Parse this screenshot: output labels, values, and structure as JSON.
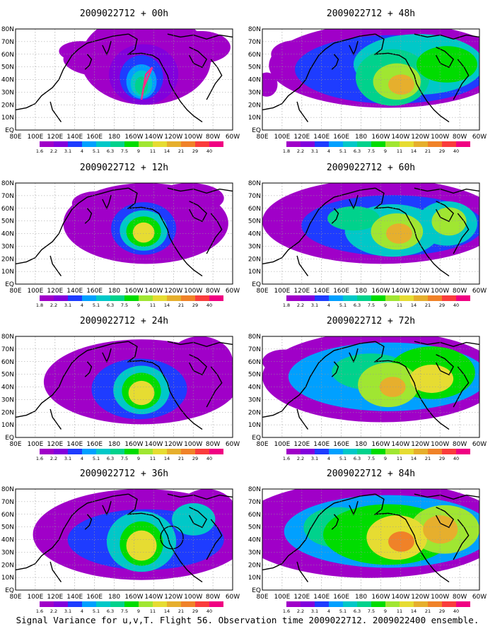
{
  "figure": {
    "caption": "Signal Variance for u,v,T. Flight 56. Observation time 2009022712. 2009022400 ensemble."
  },
  "colors": {
    "white": "#ffffff",
    "coast": "#000000",
    "track": "#ff2a8a"
  },
  "chart_data": [
    {
      "type": "heatmap",
      "title": "2009022712 + 00h",
      "x_ticks": [
        "80E",
        "100E",
        "120E",
        "140E",
        "160E",
        "180",
        "160W",
        "140W",
        "120W",
        "100W",
        "80W",
        "60W"
      ],
      "y_ticks": [
        "EQ",
        "10N",
        "20N",
        "30N",
        "40N",
        "50N",
        "60N",
        "70N",
        "80N"
      ],
      "grid": true,
      "colorbar": {
        "levels": [
          "1.6",
          "2.2",
          "3.1",
          "4",
          "5.1",
          "6.3",
          "7.5",
          "9",
          "11",
          "14",
          "21",
          "29",
          "40"
        ],
        "colors": [
          "#a000c8",
          "#8200dc",
          "#1e3cff",
          "#00a0ff",
          "#00c8c8",
          "#00d28c",
          "#00dc00",
          "#a0e632",
          "#e6dc32",
          "#e6af2d",
          "#f08228",
          "#fa3c3c",
          "#f00082"
        ]
      }
    },
    {
      "type": "heatmap",
      "title": "2009022712 + 48h",
      "x_ticks": [
        "80E",
        "100E",
        "120E",
        "140E",
        "160E",
        "180",
        "160W",
        "140W",
        "120W",
        "100W",
        "80W",
        "60W"
      ],
      "y_ticks": [
        "EQ",
        "10N",
        "20N",
        "30N",
        "40N",
        "50N",
        "60N",
        "70N",
        "80N"
      ],
      "grid": true,
      "colorbar": {
        "levels": [
          "1.8",
          "2.2",
          "3.1",
          "4",
          "5.1",
          "6.3",
          "7.5",
          "9",
          "11",
          "14",
          "21",
          "29",
          "40"
        ],
        "colors": [
          "#a000c8",
          "#8200dc",
          "#1e3cff",
          "#00a0ff",
          "#00c8c8",
          "#00d28c",
          "#00dc00",
          "#a0e632",
          "#e6dc32",
          "#e6af2d",
          "#f08228",
          "#fa3c3c",
          "#f00082"
        ]
      }
    },
    {
      "type": "heatmap",
      "title": "2009022712 + 12h",
      "x_ticks": [
        "80E",
        "100E",
        "120E",
        "140E",
        "160E",
        "180",
        "160W",
        "140W",
        "120W",
        "100W",
        "80W",
        "60W"
      ],
      "y_ticks": [
        "EQ",
        "10N",
        "20N",
        "30N",
        "40N",
        "50N",
        "60N",
        "70N",
        "80N"
      ],
      "grid": true,
      "colorbar": {
        "levels": [
          "1.8",
          "2.2",
          "3.1",
          "4",
          "5.1",
          "6.3",
          "7.5",
          "9",
          "11",
          "14",
          "21",
          "29",
          "40"
        ],
        "colors": [
          "#a000c8",
          "#8200dc",
          "#1e3cff",
          "#00a0ff",
          "#00c8c8",
          "#00d28c",
          "#00dc00",
          "#a0e632",
          "#e6dc32",
          "#e6af2d",
          "#f08228",
          "#fa3c3c",
          "#f00082"
        ]
      }
    },
    {
      "type": "heatmap",
      "title": "2009022712 + 60h",
      "x_ticks": [
        "80E",
        "100E",
        "120E",
        "140E",
        "160E",
        "180",
        "160W",
        "140W",
        "120W",
        "100W",
        "80W",
        "60W"
      ],
      "y_ticks": [
        "EQ",
        "10N",
        "20N",
        "30N",
        "40N",
        "50N",
        "60N",
        "70N",
        "80N"
      ],
      "grid": true,
      "colorbar": {
        "levels": [
          "1.8",
          "2.2",
          "3.1",
          "4",
          "5.1",
          "6.3",
          "7.5",
          "9",
          "11",
          "14",
          "21",
          "29",
          "40"
        ],
        "colors": [
          "#a000c8",
          "#8200dc",
          "#1e3cff",
          "#00a0ff",
          "#00c8c8",
          "#00d28c",
          "#00dc00",
          "#a0e632",
          "#e6dc32",
          "#e6af2d",
          "#f08228",
          "#fa3c3c",
          "#f00082"
        ]
      }
    },
    {
      "type": "heatmap",
      "title": "2009022712 + 24h",
      "x_ticks": [
        "80E",
        "100E",
        "120E",
        "140E",
        "160E",
        "180",
        "160W",
        "140W",
        "120W",
        "100W",
        "80W",
        "60W"
      ],
      "y_ticks": [
        "EQ",
        "10N",
        "20N",
        "30N",
        "40N",
        "50N",
        "60N",
        "70N",
        "80N"
      ],
      "grid": true,
      "colorbar": {
        "levels": [
          "1.6",
          "2.2",
          "3.1",
          "4",
          "5.1",
          "6.3",
          "7.5",
          "9",
          "11",
          "14",
          "21",
          "29",
          "40"
        ],
        "colors": [
          "#a000c8",
          "#8200dc",
          "#1e3cff",
          "#00a0ff",
          "#00c8c8",
          "#00d28c",
          "#00dc00",
          "#a0e632",
          "#e6dc32",
          "#e6af2d",
          "#f08228",
          "#fa3c3c",
          "#f00082"
        ]
      }
    },
    {
      "type": "heatmap",
      "title": "2009022712 + 72h",
      "x_ticks": [
        "80E",
        "100E",
        "120E",
        "140E",
        "160E",
        "180",
        "160W",
        "140W",
        "120W",
        "100W",
        "80W",
        "60W"
      ],
      "y_ticks": [
        "EQ",
        "10N",
        "20N",
        "30N",
        "40N",
        "50N",
        "60N",
        "70N",
        "80N"
      ],
      "grid": true,
      "colorbar": {
        "levels": [
          "1.6",
          "2.2",
          "3.1",
          "4",
          "5.1",
          "6.3",
          "7.5",
          "9",
          "11",
          "14",
          "21",
          "29",
          "40"
        ],
        "colors": [
          "#a000c8",
          "#8200dc",
          "#1e3cff",
          "#00a0ff",
          "#00c8c8",
          "#00d28c",
          "#00dc00",
          "#a0e632",
          "#e6dc32",
          "#e6af2d",
          "#f08228",
          "#fa3c3c",
          "#f00082"
        ]
      }
    },
    {
      "type": "heatmap",
      "title": "2009022712 + 36h",
      "x_ticks": [
        "80E",
        "100E",
        "120E",
        "140E",
        "160E",
        "180",
        "160W",
        "140W",
        "120W",
        "100W",
        "80W",
        "60W"
      ],
      "y_ticks": [
        "EQ",
        "10N",
        "20N",
        "30N",
        "40N",
        "50N",
        "60N",
        "70N",
        "80N"
      ],
      "grid": true,
      "colorbar": {
        "levels": [
          "1.6",
          "2.2",
          "3.1",
          "4",
          "5.1",
          "6.3",
          "7.5",
          "9",
          "11",
          "14",
          "21",
          "29",
          "40"
        ],
        "colors": [
          "#a000c8",
          "#8200dc",
          "#1e3cff",
          "#00a0ff",
          "#00c8c8",
          "#00d28c",
          "#00dc00",
          "#a0e632",
          "#e6dc32",
          "#e6af2d",
          "#f08228",
          "#fa3c3c",
          "#f00082"
        ]
      }
    },
    {
      "type": "heatmap",
      "title": "2009022712 + 84h",
      "x_ticks": [
        "80E",
        "100E",
        "120E",
        "140E",
        "160E",
        "180",
        "160W",
        "140W",
        "120W",
        "100W",
        "80W",
        "60W"
      ],
      "y_ticks": [
        "EQ",
        "10N",
        "20N",
        "30N",
        "40N",
        "50N",
        "60N",
        "70N",
        "80N"
      ],
      "grid": true,
      "colorbar": {
        "levels": [
          "1.6",
          "2.2",
          "3.1",
          "4",
          "5.1",
          "6.3",
          "7.5",
          "9",
          "11",
          "14",
          "21",
          "29",
          "40"
        ],
        "colors": [
          "#a000c8",
          "#8200dc",
          "#1e3cff",
          "#00a0ff",
          "#00c8c8",
          "#00d28c",
          "#00dc00",
          "#a0e632",
          "#e6dc32",
          "#e6af2d",
          "#f08228",
          "#fa3c3c",
          "#f00082"
        ]
      }
    }
  ]
}
